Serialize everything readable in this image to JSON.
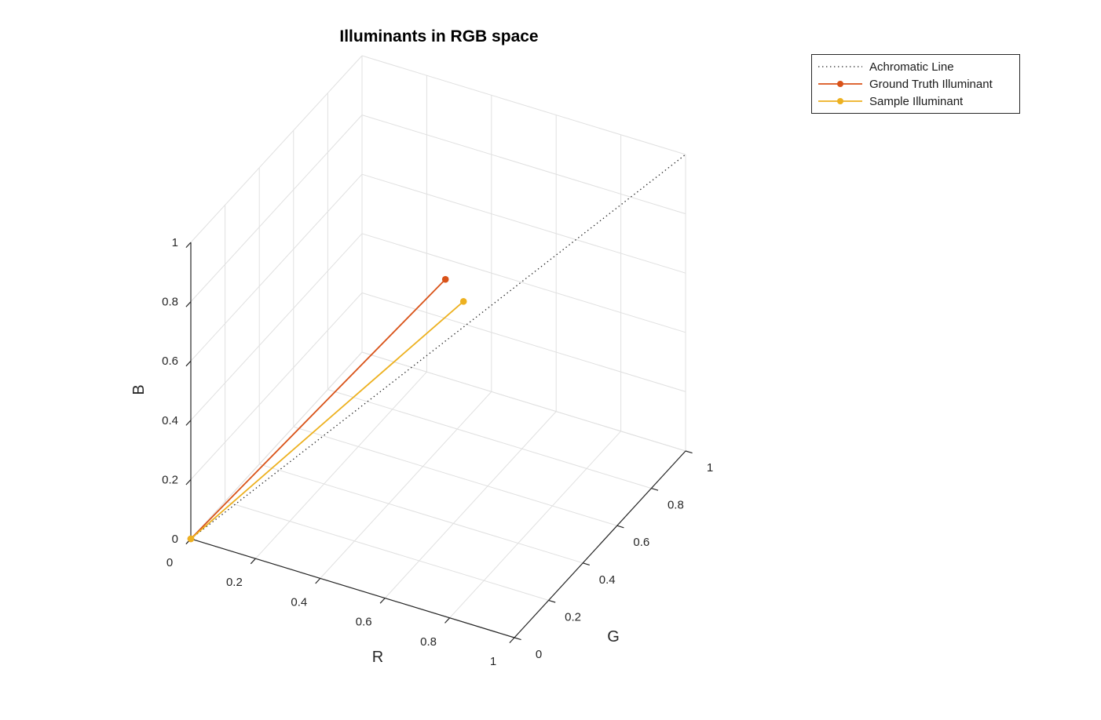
{
  "figure": {
    "title": "Illuminants in RGB space",
    "background": "#ffffff"
  },
  "axes": {
    "x": {
      "label": "R",
      "tick_values": [
        0,
        0.2,
        0.4,
        0.6,
        0.8,
        1
      ],
      "tick_labels": [
        "0",
        "0.2",
        "0.4",
        "0.6",
        "0.8",
        "1"
      ]
    },
    "y": {
      "label": "G",
      "tick_values": [
        0,
        0.2,
        0.4,
        0.6,
        0.8,
        1
      ],
      "tick_labels": [
        "0",
        "0.2",
        "0.4",
        "0.6",
        "0.8",
        "1"
      ]
    },
    "z": {
      "label": "B",
      "tick_values": [
        0,
        0.2,
        0.4,
        0.6,
        0.8,
        1
      ],
      "tick_labels": [
        "0",
        "0.2",
        "0.4",
        "0.6",
        "0.8",
        "1"
      ]
    },
    "grid_color": "#e0e0e0",
    "axis_color": "#262626",
    "text_color": "#262626"
  },
  "legend": {
    "items": [
      {
        "label": "Achromatic Line",
        "color": "#262626",
        "line_style": "dotted",
        "marker": false
      },
      {
        "label": "Ground Truth Illuminant",
        "color": "#d95319",
        "line_style": "solid",
        "marker": true
      },
      {
        "label": "Sample Illuminant",
        "color": "#edb120",
        "line_style": "solid",
        "marker": true
      }
    ]
  },
  "chart_data": {
    "type": "line",
    "projection": "3d",
    "title": "Illuminants in RGB space",
    "xlabel": "R",
    "ylabel": "G",
    "zlabel": "B",
    "xlim": [
      0,
      1
    ],
    "ylim": [
      0,
      1
    ],
    "zlim": [
      0,
      1
    ],
    "grid": true,
    "legend_position": "top-right",
    "view": {
      "azimuth": -37.5,
      "elevation": 30
    },
    "series": [
      {
        "name": "Achromatic Line",
        "points": [
          [
            0,
            0,
            0
          ],
          [
            1,
            1,
            1
          ]
        ],
        "color": "#262626",
        "line_style": "dotted",
        "marker": "none"
      },
      {
        "name": "Ground Truth Illuminant",
        "points": [
          [
            0,
            0,
            0
          ],
          [
            0.48,
            0.58,
            0.67
          ]
        ],
        "color": "#d95319",
        "line_style": "solid",
        "marker": "circle"
      },
      {
        "name": "Sample Illuminant",
        "points": [
          [
            0,
            0,
            0
          ],
          [
            0.52,
            0.61,
            0.59
          ]
        ],
        "color": "#edb120",
        "line_style": "solid",
        "marker": "circle"
      }
    ]
  }
}
